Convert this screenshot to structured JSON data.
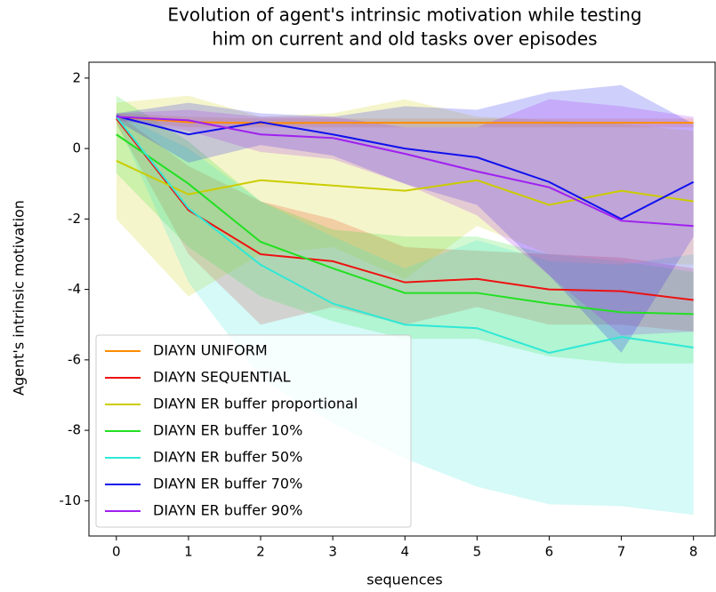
{
  "chart_data": {
    "type": "line",
    "title": [
      "Evolution of agent's intrinsic motivation while testing",
      "him on current and old tasks over episodes"
    ],
    "x_label": "sequences",
    "y_label": "Agent's intrinsic motivation",
    "x": [
      0,
      1,
      2,
      3,
      4,
      5,
      6,
      7,
      8
    ],
    "xlim": [
      -0.38,
      8.3
    ],
    "xticks": [
      0,
      1,
      2,
      3,
      4,
      5,
      6,
      7,
      8
    ],
    "ylim": [
      -11.0,
      2.45
    ],
    "yticks": [
      2,
      0,
      -2,
      -4,
      -6,
      -8,
      -10
    ],
    "legend": "lower left",
    "series": [
      {
        "name": "DIAYN UNIFORM",
        "color": "#ff8c00",
        "values": [
          0.9,
          0.75,
          0.72,
          0.73,
          0.73,
          0.73,
          0.73,
          0.73,
          0.73
        ],
        "upper": [
          1.0,
          0.9,
          0.85,
          0.85,
          0.85,
          0.85,
          0.85,
          0.85,
          0.85
        ],
        "lower": [
          0.8,
          0.6,
          0.6,
          0.6,
          0.6,
          0.6,
          0.6,
          0.6,
          0.6
        ]
      },
      {
        "name": "DIAYN SEQUENTIAL",
        "color": "#ee1111",
        "values": [
          0.85,
          -1.75,
          -3.0,
          -3.2,
          -3.8,
          -3.7,
          -4.0,
          -4.05,
          -4.3
        ],
        "upper": [
          1.0,
          -0.5,
          -1.5,
          -2.0,
          -2.8,
          -2.9,
          -3.0,
          -3.1,
          -3.4
        ],
        "lower": [
          0.7,
          -3.0,
          -5.0,
          -4.5,
          -5.0,
          -4.5,
          -5.0,
          -5.0,
          -5.2
        ]
      },
      {
        "name": "DIAYN ER buffer proportional",
        "color": "#cccc00",
        "values": [
          -0.35,
          -1.3,
          -0.9,
          -1.05,
          -1.2,
          -0.9,
          -1.6,
          -1.2,
          -1.5
        ],
        "upper": [
          1.3,
          1.5,
          0.9,
          1.0,
          1.4,
          0.9,
          0.8,
          0.7,
          0.5
        ],
        "lower": [
          -2.0,
          -4.2,
          -3.0,
          -2.8,
          -3.7,
          -2.2,
          -3.0,
          -3.2,
          -3.3
        ]
      },
      {
        "name": "DIAYN ER buffer 10%",
        "color": "#22e022",
        "values": [
          0.4,
          -1.0,
          -2.65,
          -3.4,
          -4.1,
          -4.1,
          -4.4,
          -4.65,
          -4.7
        ],
        "upper": [
          1.5,
          0.2,
          -1.5,
          -2.3,
          -2.5,
          -2.5,
          -3.0,
          -3.2,
          -3.5
        ],
        "lower": [
          -0.7,
          -2.8,
          -4.2,
          -4.9,
          -5.4,
          -5.4,
          -5.9,
          -6.1,
          -6.1
        ]
      },
      {
        "name": "DIAYN ER buffer 50%",
        "color": "#2ee8d6",
        "values": [
          0.9,
          -1.7,
          -3.3,
          -4.4,
          -5.0,
          -5.1,
          -5.8,
          -5.35,
          -5.65
        ],
        "upper": [
          1.0,
          0.0,
          -1.5,
          -2.5,
          -3.4,
          -2.6,
          -3.2,
          -3.3,
          -3.0
        ],
        "lower": [
          0.8,
          -3.8,
          -6.5,
          -7.8,
          -8.8,
          -9.6,
          -10.1,
          -10.15,
          -10.4
        ]
      },
      {
        "name": "DIAYN ER buffer 70%",
        "color": "#1010ee",
        "values": [
          0.92,
          0.4,
          0.75,
          0.4,
          0.0,
          -0.25,
          -0.95,
          -2.0,
          -0.95
        ],
        "upper": [
          1.0,
          1.3,
          1.0,
          0.9,
          1.2,
          1.1,
          1.6,
          1.8,
          0.7
        ],
        "lower": [
          0.8,
          -0.4,
          0.1,
          -0.2,
          -1.0,
          -1.6,
          -3.6,
          -5.8,
          -2.5
        ]
      },
      {
        "name": "DIAYN ER buffer 90%",
        "color": "#a020f0",
        "values": [
          0.9,
          0.8,
          0.4,
          0.3,
          -0.15,
          -0.65,
          -1.1,
          -2.05,
          -2.2
        ],
        "upper": [
          1.0,
          1.1,
          0.9,
          0.9,
          0.6,
          0.6,
          1.4,
          1.2,
          0.9
        ],
        "lower": [
          0.8,
          0.5,
          -0.1,
          -0.3,
          -1.0,
          -1.9,
          -3.6,
          -5.3,
          -5.2
        ]
      }
    ]
  }
}
